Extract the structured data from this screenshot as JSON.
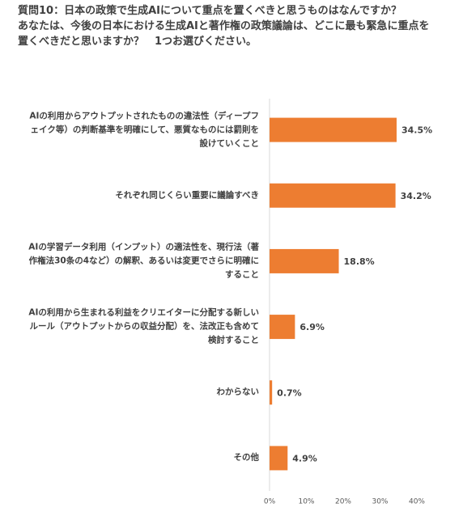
{
  "chart_data": {
    "type": "barh",
    "title": "質問10：日本の政策で生成AIについて重点を置くべきと思うものはなんですか？",
    "subtitle": "あなたは、今後の日本における生成AIと著作権の政策議論は、どこに最も緊急に重点を置くべきだと思いますか？　1つお選びください。",
    "categories": [
      "AIの利用からアウトプットされたものの違法性（ディープフェイク等）の判断基準を明確にして、悪質なものには罰則を設けていくこと",
      "それぞれ同じくらい重要に議論すべき",
      "AIの学習データ利用（インプット）の適法性を、現行法（著作権法30条の4など）の解釈、あるいは変更でさらに明確にすること",
      "AIの利用から生まれる利益をクリエイターに分配する新しいルール（アウトプットからの収益分配）を、法改正も含めて検討すること",
      "わからない",
      "その他"
    ],
    "values": [
      34.5,
      34.2,
      18.8,
      6.9,
      0.7,
      4.9
    ],
    "value_labels": [
      "34.5%",
      "34.2%",
      "18.8%",
      "6.9%",
      "0.7%",
      "4.9%"
    ],
    "color": "#ed7d31",
    "xlim": [
      0,
      40
    ],
    "xticks": [
      {
        "value": 0,
        "label": "0%"
      },
      {
        "value": 10,
        "label": "10%"
      },
      {
        "value": 20,
        "label": "20%"
      },
      {
        "value": 30,
        "label": "30%"
      },
      {
        "value": 40,
        "label": "40%"
      }
    ],
    "grid": false
  }
}
